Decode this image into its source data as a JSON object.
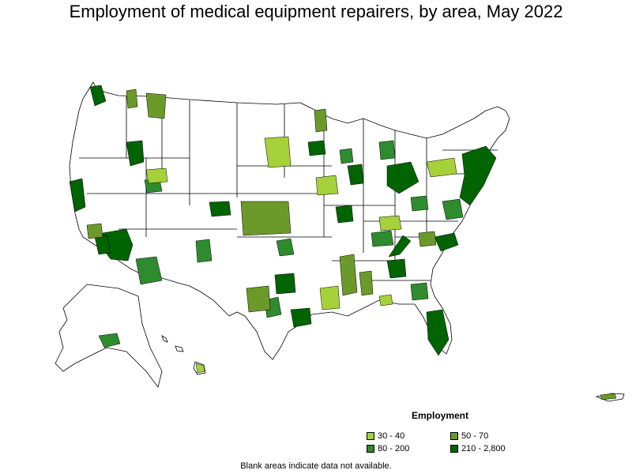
{
  "title": "Employment of medical equipment repairers, by area, May 2022",
  "legend": {
    "title": "Employment",
    "items": [
      {
        "label": "30 - 40",
        "color": "#a6d13a"
      },
      {
        "label": "50 - 70",
        "color": "#6b9a2a"
      },
      {
        "label": "80 - 200",
        "color": "#2e8b2e"
      },
      {
        "label": "210 - 2,800",
        "color": "#006400"
      }
    ]
  },
  "footnote": "Blank areas indicate data not available.",
  "colors": {
    "boundary": "#000000",
    "no_data": "#ffffff"
  }
}
